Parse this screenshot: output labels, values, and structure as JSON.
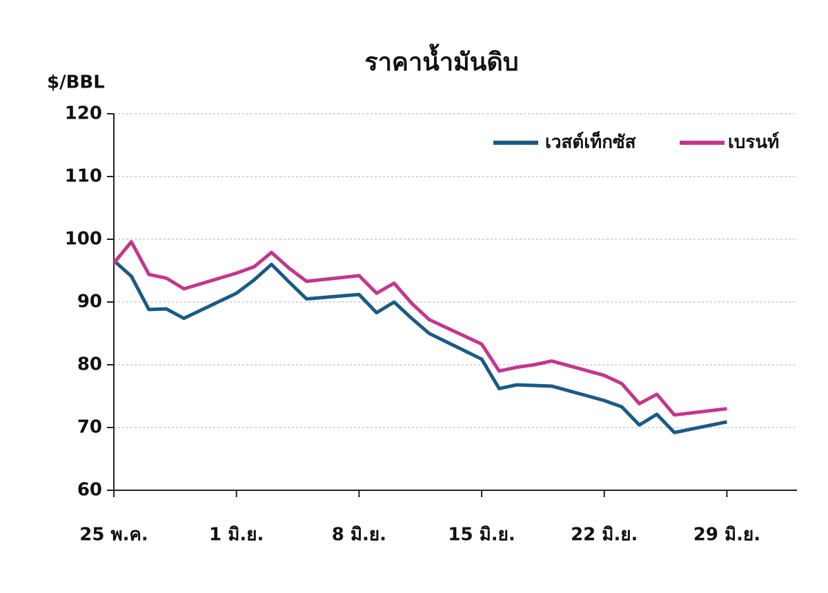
{
  "chart_data": {
    "type": "line",
    "title": "ราคาน้ำมันดิบ",
    "y_label": "$/BBL",
    "x": [
      0,
      1,
      2,
      3,
      4,
      7,
      8,
      9,
      10,
      11,
      14,
      15,
      16,
      17,
      18,
      21,
      22,
      23,
      24,
      25,
      28,
      29,
      30,
      31,
      32,
      35
    ],
    "series": [
      {
        "name": "เวสต์เท็กซัส",
        "color": "#1c5a84",
        "values": [
          96.6,
          94.1,
          88.8,
          88.9,
          87.4,
          91.4,
          93.5,
          96.0,
          93.2,
          90.5,
          91.2,
          88.3,
          90.0,
          87.4,
          85.0,
          80.9,
          76.2,
          76.8,
          76.7,
          76.6,
          74.3,
          73.3,
          70.4,
          72.1,
          69.2,
          70.9
        ]
      },
      {
        "name": "เบรนท์",
        "color": "#c2378c",
        "values": [
          96.2,
          99.6,
          94.4,
          93.8,
          92.1,
          94.6,
          95.6,
          97.9,
          95.4,
          93.3,
          94.2,
          91.4,
          93.0,
          89.8,
          87.2,
          83.3,
          79.0,
          79.6,
          80.0,
          80.6,
          78.3,
          77.0,
          73.8,
          75.3,
          72.0,
          73.0
        ]
      }
    ],
    "xlim": [
      0,
      39
    ],
    "xticks": [
      {
        "value": 0,
        "label": "25 พ.ค."
      },
      {
        "value": 7,
        "label": "1 มิ.ย."
      },
      {
        "value": 14,
        "label": "8 มิ.ย."
      },
      {
        "value": 21,
        "label": "15 มิ.ย."
      },
      {
        "value": 28,
        "label": "22 มิ.ย."
      },
      {
        "value": 35,
        "label": "29 มิ.ย."
      }
    ],
    "ylim": [
      60,
      120
    ],
    "yticks": [
      60,
      70,
      80,
      90,
      100,
      110,
      120
    ],
    "grid": true,
    "legend": "top-right"
  }
}
